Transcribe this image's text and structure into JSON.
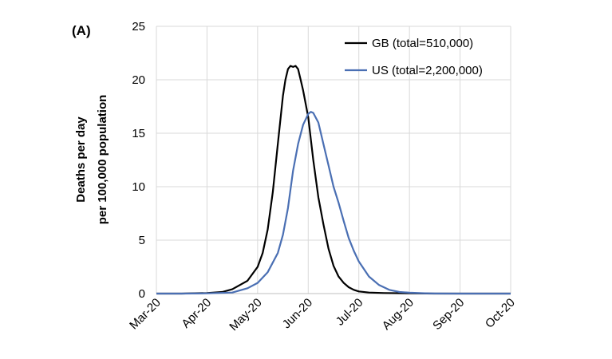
{
  "chart_data": {
    "type": "line",
    "panel_label": "(A)",
    "ylabel_lines": [
      "Deaths per day",
      "per 100,000 population"
    ],
    "xlabel": "",
    "x_tick_labels": [
      "Mar-20",
      "Apr-20",
      "May-20",
      "Jun-20",
      "Jul-20",
      "Aug-20",
      "Sep-20",
      "Oct-20"
    ],
    "y_ticks": [
      0,
      5,
      10,
      15,
      20,
      25
    ],
    "ylim": [
      0,
      25
    ],
    "x_axis": "months since Mar-20 (tick at each month start)",
    "xlim": [
      0,
      7
    ],
    "grid": true,
    "legend_position": "top-right",
    "series": [
      {
        "name": "GB (total=510,000)",
        "color": "#000000",
        "x": [
          0.0,
          0.5,
          1.0,
          1.3,
          1.5,
          1.8,
          2.0,
          2.1,
          2.2,
          2.3,
          2.4,
          2.5,
          2.55,
          2.6,
          2.65,
          2.7,
          2.75,
          2.8,
          2.85,
          2.9,
          3.0,
          3.1,
          3.2,
          3.3,
          3.4,
          3.5,
          3.6,
          3.7,
          3.8,
          3.9,
          4.0,
          4.2,
          4.5,
          5.0,
          5.5,
          6.0,
          7.0
        ],
        "values": [
          0,
          0,
          0.05,
          0.15,
          0.4,
          1.2,
          2.5,
          3.8,
          6.0,
          9.5,
          14.0,
          18.5,
          20.0,
          21.0,
          21.3,
          21.2,
          21.3,
          21.0,
          20.0,
          19.0,
          16.5,
          12.5,
          9.0,
          6.5,
          4.2,
          2.6,
          1.6,
          1.0,
          0.6,
          0.35,
          0.2,
          0.1,
          0.05,
          0.02,
          0,
          0,
          0
        ]
      },
      {
        "name": "US (total=2,200,000)",
        "color": "#4a6fb3",
        "x": [
          0.0,
          0.5,
          1.0,
          1.5,
          1.8,
          2.0,
          2.2,
          2.4,
          2.5,
          2.6,
          2.7,
          2.8,
          2.9,
          3.0,
          3.05,
          3.1,
          3.2,
          3.3,
          3.4,
          3.5,
          3.6,
          3.7,
          3.8,
          3.9,
          4.0,
          4.2,
          4.4,
          4.6,
          4.8,
          5.0,
          5.3,
          5.5,
          6.0,
          7.0
        ],
        "values": [
          0,
          0,
          0.02,
          0.1,
          0.5,
          1.0,
          2.0,
          3.8,
          5.5,
          8.0,
          11.5,
          14.0,
          15.8,
          16.8,
          17.0,
          16.9,
          16.0,
          14.0,
          12.0,
          10.0,
          8.5,
          6.8,
          5.2,
          4.0,
          3.0,
          1.6,
          0.8,
          0.35,
          0.15,
          0.08,
          0.03,
          0.01,
          0,
          0
        ]
      }
    ]
  }
}
